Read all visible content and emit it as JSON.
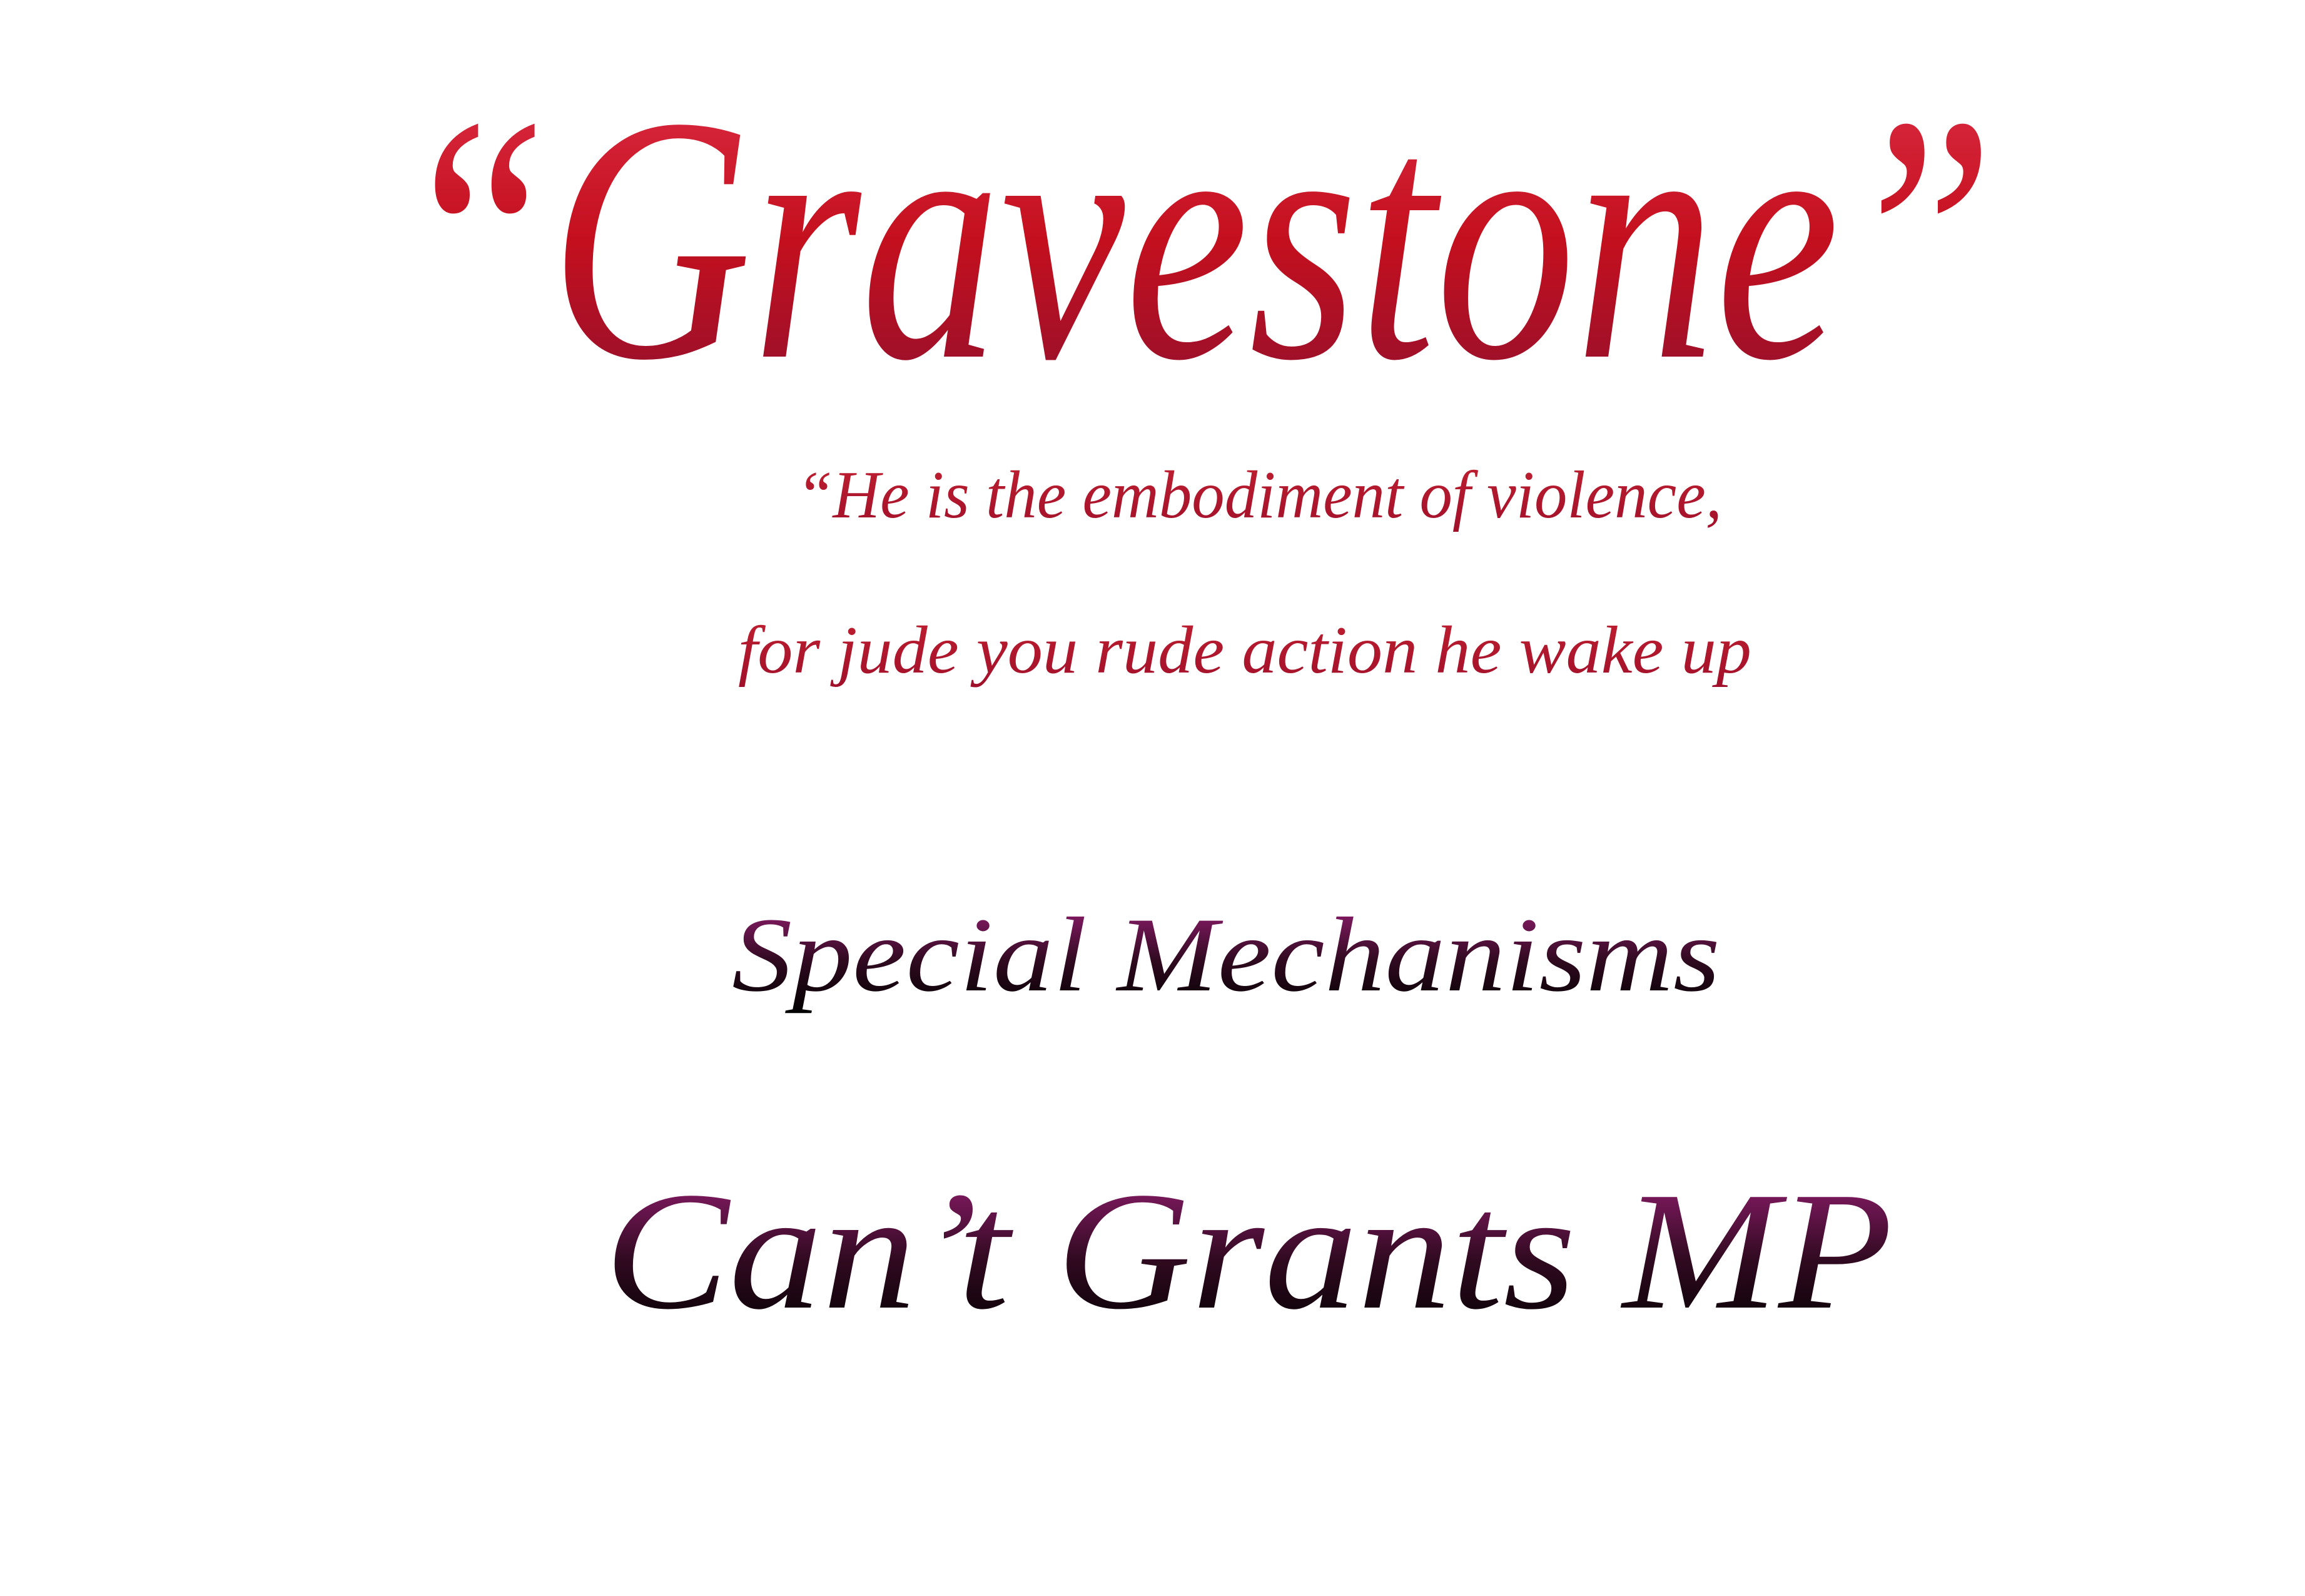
{
  "card": {
    "title": "“Gravestone”",
    "quote": [
      "“He is the embodiment of violence,",
      "for jude you rude action he wake up"
    ],
    "section_title": "Special Mechanisms",
    "mechanism": "Can’t Grants MP"
  }
}
